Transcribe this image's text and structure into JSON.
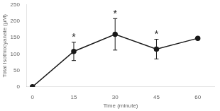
{
  "chart_data": {
    "type": "line",
    "x": [
      0,
      15,
      30,
      45,
      60
    ],
    "series": [
      {
        "values": [
          0,
          108,
          160,
          115,
          148
        ],
        "yerr": [
          0,
          28,
          48,
          30,
          0
        ],
        "color": "#1a1a1a",
        "marker": "circle",
        "line_style": "solid"
      }
    ],
    "xlabel": "Time (minute)",
    "ylabel": "Total Isothiocyanate (μM)",
    "xlim": [
      -2,
      66
    ],
    "xticks": [
      0,
      15,
      30,
      45,
      60
    ],
    "ylim": [
      0,
      250
    ],
    "yticks": [
      0,
      50,
      100,
      150,
      200,
      250
    ],
    "grid": false,
    "annotations": [
      {
        "x": 15,
        "y": 143,
        "text": "*"
      },
      {
        "x": 30,
        "y": 215,
        "text": "*"
      },
      {
        "x": 45,
        "y": 152,
        "text": "*"
      }
    ]
  }
}
